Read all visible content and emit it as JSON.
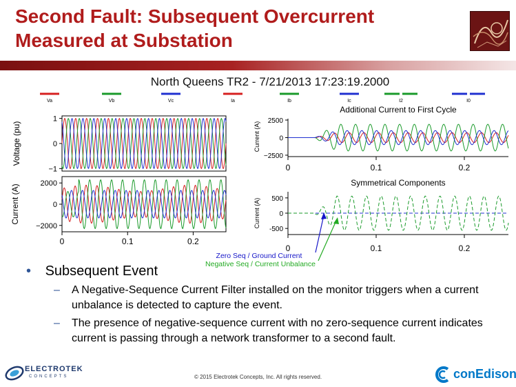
{
  "slide": {
    "title_line1": "Second Fault: Subsequent Overcurrent",
    "title_line2": "Measured at Substation",
    "colors": {
      "title": "#b01c1c",
      "va": "#d62020",
      "vb": "#1a9a2a",
      "vc": "#2030d0",
      "accent_blue": "#2f5597"
    },
    "bullet": "Subsequent Event",
    "sub_bullets": [
      "A Negative-Sequence Current Filter installed on the monitor triggers when a current unbalance is detected to capture the event.",
      "The presence of negative-sequence current with no zero-sequence current indicates current is passing through a network transformer to a second fault."
    ],
    "copyright": "© 2015 Electrotek Concepts,  Inc. All rights reserved.",
    "logo_left_name": "ELECTROTEK",
    "logo_left_sub": "CONCEPTS",
    "logo_right_name": "conEdison"
  },
  "chart_data": {
    "type": "line",
    "title": "North Queens TR2 - 7/21/2013 17:23:19.2000",
    "legend": [
      {
        "label": "Va",
        "colors": [
          "#d62020"
        ]
      },
      {
        "label": "Vb",
        "colors": [
          "#1a9a2a"
        ]
      },
      {
        "label": "Vc",
        "colors": [
          "#2030d0"
        ]
      },
      {
        "label": "Ia",
        "colors": [
          "#d62020"
        ]
      },
      {
        "label": "Ib",
        "colors": [
          "#1a9a2a"
        ]
      },
      {
        "label": "Ic",
        "colors": [
          "#2030d0"
        ]
      },
      {
        "label": "I2",
        "colors": [
          "#1a9a2a",
          "#1a9a2a"
        ]
      },
      {
        "label": "I0",
        "colors": [
          "#2030d0",
          "#2030d0"
        ]
      }
    ],
    "panels": [
      {
        "id": "voltage",
        "ylabel": "Voltage (pu)",
        "yticks": [
          "1",
          "0",
          "−1"
        ],
        "ylim": [
          -1.1,
          1.1
        ],
        "x": [
          0,
          0.25
        ]
      },
      {
        "id": "current",
        "ylabel": "Current (A)",
        "yticks": [
          "2000",
          "0",
          "−2000"
        ],
        "ylim": [
          -2600,
          2600
        ],
        "x": [
          0,
          0.25
        ]
      },
      {
        "id": "additional",
        "title": "Additional Current to First Cycle",
        "ylabel": "Current (A)",
        "yticks": [
          "2500",
          "0",
          "−2500"
        ],
        "ylim": [
          -2700,
          2700
        ],
        "x": [
          0,
          0.25
        ]
      },
      {
        "id": "symmetrical",
        "title": "Symmetrical Components",
        "ylabel": "Current (A)",
        "yticks": [
          "500",
          "0",
          "-500"
        ],
        "ylim": [
          -700,
          700
        ],
        "x": [
          0,
          0.25
        ]
      }
    ],
    "xticks": [
      "0",
      "0.1",
      "0.2"
    ],
    "xtick_values": [
      0,
      0.1,
      0.2
    ],
    "annotations": [
      {
        "text": "Zero Seq / Ground Current",
        "color": "#1515c8"
      },
      {
        "text": "Negative Seq / Current Unbalance",
        "color": "#22aa22"
      }
    ]
  }
}
